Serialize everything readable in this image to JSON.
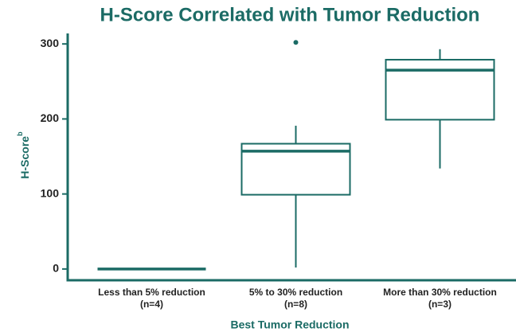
{
  "chart_data": {
    "type": "box",
    "title": "H-Score Correlated with Tumor Reduction",
    "xlabel": "Best Tumor Reduction",
    "ylabel": "H-Score",
    "ylabel_superscript": "b",
    "color": "#1b6b65",
    "categories": [
      [
        "Less than 5% reduction",
        "(n=4)"
      ],
      [
        "5% to 30% reduction",
        "(n=8)"
      ],
      [
        "More than 30% reduction",
        "(n=3)"
      ]
    ],
    "boxes": [
      {
        "min": 0,
        "q1": 0,
        "median": 0,
        "q3": 0,
        "max": 0,
        "outliers": []
      },
      {
        "min": 2,
        "q1": 99,
        "median": 157,
        "q3": 167,
        "max": 191,
        "outliers": [
          302
        ]
      },
      {
        "min": 134,
        "q1": 199,
        "median": 265,
        "q3": 279,
        "max": 293,
        "outliers": []
      }
    ],
    "ylim": [
      -15,
      314
    ],
    "yticks": [
      0,
      100,
      200,
      300
    ]
  }
}
